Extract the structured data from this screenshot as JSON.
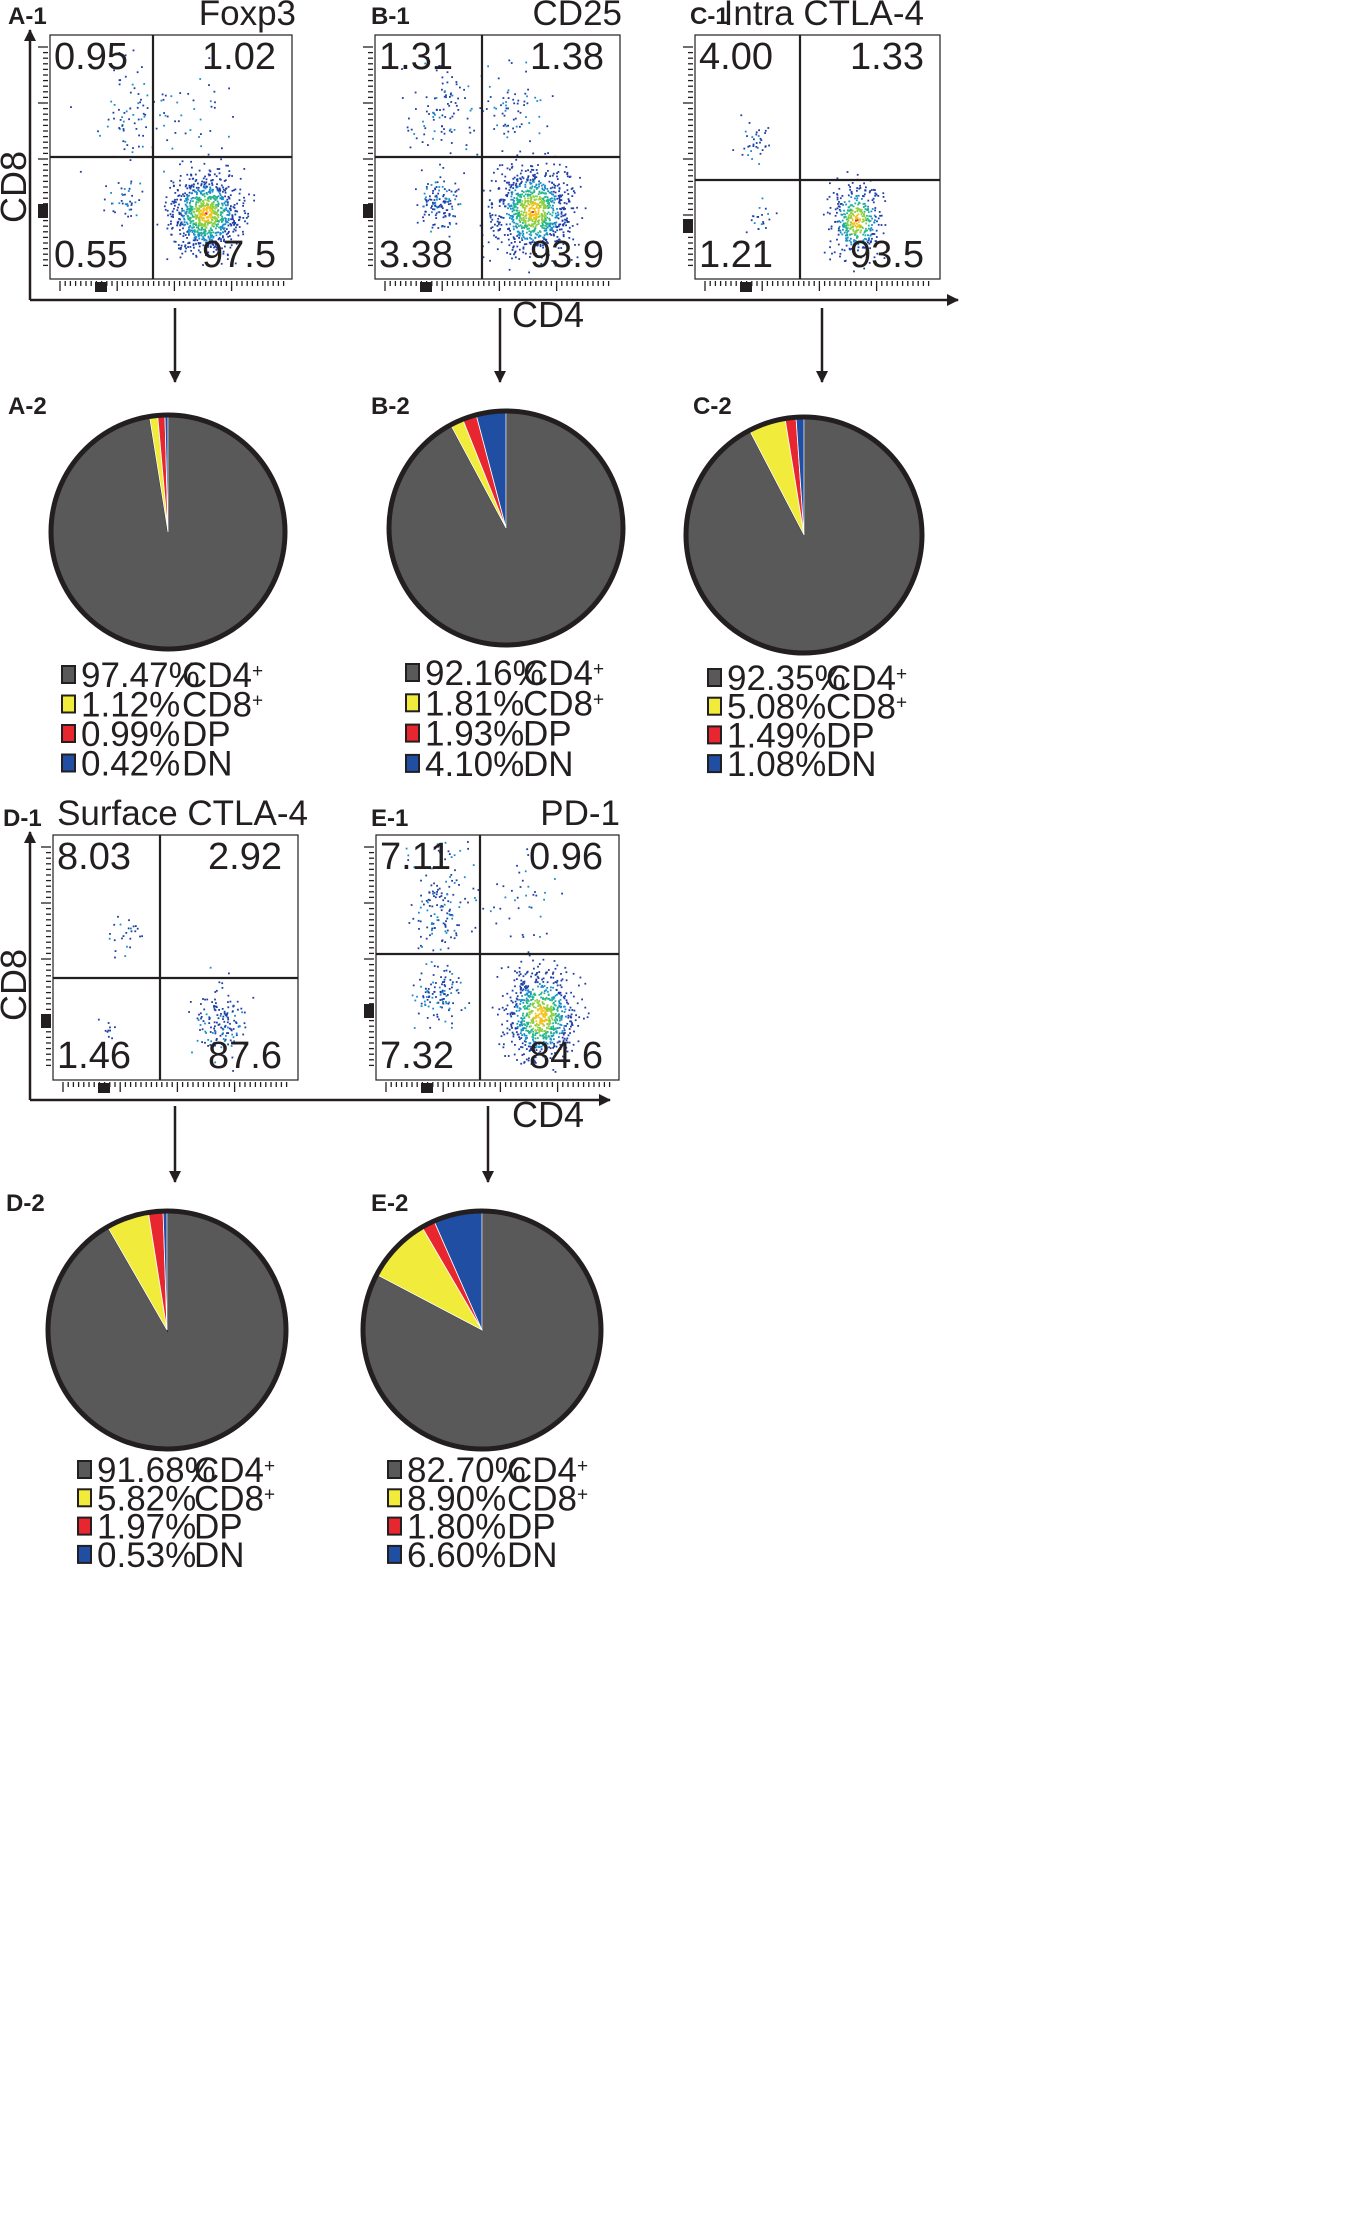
{
  "colors": {
    "cd4": "#595959",
    "cd8": "#f1ec3b",
    "dp": "#e8262f",
    "dn": "#1f4ea3",
    "outline": "#231f20",
    "dens": [
      "#1f3fa6",
      "#1a8ec9",
      "#25b58e",
      "#8fcf3e",
      "#f2c21a",
      "#e8262f"
    ]
  },
  "axes": {
    "x_label": "CD4",
    "y_label": "CD8"
  },
  "plots": [
    {
      "id": "A-1",
      "marker": "Foxp3",
      "quadrants": {
        "ul": "0.95",
        "ur": "1.02",
        "ll": "0.55",
        "lr": "97.5"
      }
    },
    {
      "id": "B-1",
      "marker": "CD25",
      "quadrants": {
        "ul": "1.31",
        "ur": "1.38",
        "ll": "3.38",
        "lr": "93.9"
      }
    },
    {
      "id": "C-1",
      "marker": "Intra CTLA-4",
      "quadrants": {
        "ul": "4.00",
        "ur": "1.33",
        "ll": "1.21",
        "lr": "93.5"
      }
    },
    {
      "id": "D-1",
      "marker": "Surface CTLA-4",
      "quadrants": {
        "ul": "8.03",
        "ur": "2.92",
        "ll": "1.46",
        "lr": "87.6"
      }
    },
    {
      "id": "E-1",
      "marker": "PD-1",
      "quadrants": {
        "ul": "7.11",
        "ur": "0.96",
        "ll": "7.32",
        "lr": "84.6"
      }
    }
  ],
  "chart_data": [
    {
      "type": "pie",
      "id": "A-2",
      "categories": [
        "CD4+",
        "CD8+",
        "DP",
        "DN"
      ],
      "values": [
        97.47,
        1.12,
        0.99,
        0.42
      ],
      "legend": [
        {
          "pct": "97.47%",
          "name": "CD4",
          "sup": "+"
        },
        {
          "pct": "1.12%",
          "name": "CD8",
          "sup": "+"
        },
        {
          "pct": "0.99%",
          "name": "DP",
          "sup": ""
        },
        {
          "pct": "0.42%",
          "name": "DN",
          "sup": ""
        }
      ]
    },
    {
      "type": "pie",
      "id": "B-2",
      "categories": [
        "CD4+",
        "CD8+",
        "DP",
        "DN"
      ],
      "values": [
        92.16,
        1.81,
        1.93,
        4.1
      ],
      "legend": [
        {
          "pct": "92.16%",
          "name": "CD4",
          "sup": "+"
        },
        {
          "pct": "1.81%",
          "name": "CD8",
          "sup": "+"
        },
        {
          "pct": "1.93%",
          "name": "DP",
          "sup": ""
        },
        {
          "pct": "4.10%",
          "name": "DN",
          "sup": ""
        }
      ]
    },
    {
      "type": "pie",
      "id": "C-2",
      "categories": [
        "CD4+",
        "CD8+",
        "DP",
        "DN"
      ],
      "values": [
        92.35,
        5.08,
        1.49,
        1.08
      ],
      "legend": [
        {
          "pct": "92.35%",
          "name": "CD4",
          "sup": "+"
        },
        {
          "pct": "5.08%",
          "name": "CD8",
          "sup": "+"
        },
        {
          "pct": "1.49%",
          "name": "DP",
          "sup": ""
        },
        {
          "pct": "1.08%",
          "name": "DN",
          "sup": ""
        }
      ]
    },
    {
      "type": "pie",
      "id": "D-2",
      "categories": [
        "CD4+",
        "CD8+",
        "DP",
        "DN"
      ],
      "values": [
        91.68,
        5.82,
        1.97,
        0.53
      ],
      "legend": [
        {
          "pct": "91.68%",
          "name": "CD4",
          "sup": "+"
        },
        {
          "pct": "5.82%",
          "name": "CD8",
          "sup": "+"
        },
        {
          "pct": "1.97%",
          "name": "DP",
          "sup": ""
        },
        {
          "pct": "0.53%",
          "name": "DN",
          "sup": ""
        }
      ]
    },
    {
      "type": "pie",
      "id": "E-2",
      "categories": [
        "CD4+",
        "CD8+",
        "DP",
        "DN"
      ],
      "values": [
        82.7,
        8.9,
        1.8,
        6.6
      ],
      "legend": [
        {
          "pct": "82.70%",
          "name": "CD4",
          "sup": "+"
        },
        {
          "pct": "8.90%",
          "name": "CD8",
          "sup": "+"
        },
        {
          "pct": "1.80%",
          "name": "DP",
          "sup": ""
        },
        {
          "pct": "6.60%",
          "name": "DN",
          "sup": ""
        }
      ]
    }
  ]
}
